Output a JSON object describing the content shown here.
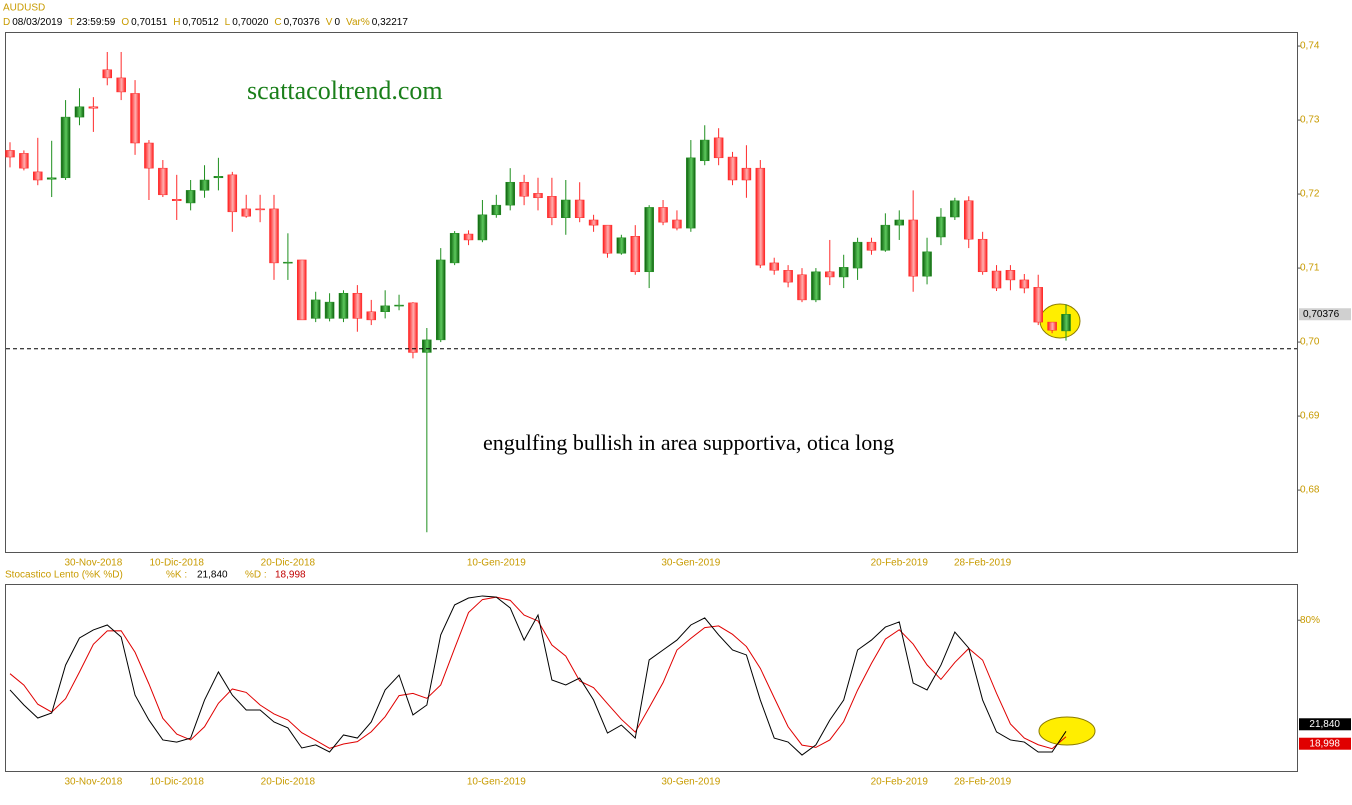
{
  "header": {
    "symbol": "AUDUSD",
    "fields": [
      {
        "key": "D",
        "value": "08/03/2019"
      },
      {
        "key": "T",
        "value": "23:59:59"
      },
      {
        "key": "O",
        "value": "0,70151"
      },
      {
        "key": "H",
        "value": "0,70512"
      },
      {
        "key": "L",
        "value": "0,70020"
      },
      {
        "key": "C",
        "value": "0,70376"
      },
      {
        "key": "V",
        "value": "0"
      },
      {
        "key": "Var%",
        "value": "0,32217"
      }
    ]
  },
  "chart_data": [
    {
      "type": "candlestick",
      "annotations": [
        "scattacoltrend.com",
        "engulfing bullish in area supportiva, otica long"
      ],
      "last_price_label": "0,70376",
      "support_level": 0.6991,
      "up_color": "#1f8f1f",
      "down_color": "#ff2a2a",
      "categories": [
        null,
        null,
        null,
        null,
        null,
        null,
        "30-Nov-2018",
        null,
        null,
        null,
        null,
        null,
        "10-Dic-2018",
        null,
        null,
        null,
        null,
        null,
        null,
        null,
        "20-Dic-2018",
        null,
        null,
        null,
        null,
        null,
        null,
        null,
        null,
        null,
        null,
        null,
        null,
        null,
        null,
        "10-Gen-2019",
        null,
        null,
        null,
        null,
        null,
        null,
        null,
        null,
        null,
        null,
        null,
        null,
        null,
        "30-Gen-2019",
        null,
        null,
        null,
        null,
        null,
        null,
        null,
        null,
        null,
        null,
        null,
        null,
        null,
        null,
        "20-Feb-2019",
        null,
        null,
        null,
        null,
        null,
        "28-Feb-2019",
        null,
        null,
        null,
        null,
        null,
        null
      ],
      "open": [
        0.7259,
        0.7255,
        0.723,
        0.722,
        0.7222,
        0.7304,
        0.7318,
        0.7368,
        0.7357,
        0.7336,
        0.7269,
        0.7235,
        0.7193,
        0.7188,
        0.7205,
        0.7222,
        0.7226,
        0.718,
        0.718,
        0.718,
        0.7107,
        0.7111,
        0.7032,
        0.7032,
        0.7032,
        0.7066,
        0.7041,
        0.7041,
        0.7049,
        0.7053,
        0.6986,
        0.7003,
        0.7107,
        0.7146,
        0.7138,
        0.7172,
        0.7185,
        0.7216,
        0.7201,
        0.7197,
        0.7168,
        0.7192,
        0.7165,
        0.7158,
        0.712,
        0.7143,
        0.7095,
        0.7182,
        0.7165,
        0.7154,
        0.7245,
        0.7276,
        0.725,
        0.7235,
        0.7235,
        0.7107,
        0.7097,
        0.7091,
        0.7057,
        0.7095,
        0.7088,
        0.71,
        0.7135,
        0.7124,
        0.7158,
        0.7165,
        0.7089,
        0.7142,
        0.7169,
        0.7191,
        0.7139,
        0.7096,
        0.7097,
        0.7084,
        0.7074,
        0.7027,
        0.70151
      ],
      "high": [
        0.727,
        0.7259,
        0.7276,
        0.7272,
        0.7327,
        0.7343,
        0.7331,
        0.7392,
        0.7392,
        0.7354,
        0.7273,
        0.7246,
        0.7226,
        0.7219,
        0.7239,
        0.7249,
        0.723,
        0.7199,
        0.7199,
        0.7199,
        0.7147,
        0.7111,
        0.7068,
        0.7066,
        0.707,
        0.7077,
        0.7057,
        0.707,
        0.7064,
        0.7054,
        0.7019,
        0.7127,
        0.715,
        0.7151,
        0.7192,
        0.7199,
        0.7235,
        0.7226,
        0.7222,
        0.7222,
        0.7219,
        0.7216,
        0.7172,
        0.7158,
        0.7145,
        0.7158,
        0.7185,
        0.7192,
        0.7178,
        0.7273,
        0.7293,
        0.7289,
        0.7257,
        0.7266,
        0.7246,
        0.7114,
        0.7104,
        0.71,
        0.71,
        0.7138,
        0.7118,
        0.7141,
        0.7141,
        0.7174,
        0.7178,
        0.7205,
        0.7141,
        0.7181,
        0.7195,
        0.7197,
        0.7149,
        0.7104,
        0.7104,
        0.7092,
        0.7091,
        0.7027,
        0.70512
      ],
      "low": [
        0.7236,
        0.7232,
        0.7212,
        0.7196,
        0.7219,
        0.7293,
        0.7284,
        0.7347,
        0.7327,
        0.7253,
        0.7192,
        0.7196,
        0.7165,
        0.7178,
        0.7195,
        0.7205,
        0.7149,
        0.7168,
        0.7162,
        0.7084,
        0.7084,
        0.703,
        0.7027,
        0.7028,
        0.7027,
        0.7014,
        0.7023,
        0.7032,
        0.7043,
        0.6978,
        0.6743,
        0.7,
        0.7104,
        0.7131,
        0.7135,
        0.7168,
        0.7178,
        0.7185,
        0.7178,
        0.7158,
        0.7145,
        0.7162,
        0.7149,
        0.7114,
        0.7118,
        0.7091,
        0.7073,
        0.7158,
        0.7151,
        0.7149,
        0.7239,
        0.7239,
        0.7212,
        0.7195,
        0.71,
        0.7091,
        0.7074,
        0.7054,
        0.7054,
        0.7077,
        0.7073,
        0.7084,
        0.7118,
        0.7122,
        0.7138,
        0.7068,
        0.7078,
        0.7131,
        0.7165,
        0.7127,
        0.7091,
        0.7069,
        0.707,
        0.7066,
        0.7023,
        0.7012,
        0.7002
      ],
      "close": [
        0.725,
        0.7235,
        0.7219,
        0.7222,
        0.7304,
        0.7318,
        0.7316,
        0.7357,
        0.7338,
        0.7269,
        0.7235,
        0.7199,
        0.7191,
        0.7205,
        0.7219,
        0.7224,
        0.7176,
        0.717,
        0.7179,
        0.7107,
        0.7108,
        0.703,
        0.7057,
        0.7054,
        0.7066,
        0.7032,
        0.703,
        0.7049,
        0.705,
        0.6986,
        0.7003,
        0.7111,
        0.7147,
        0.7138,
        0.7172,
        0.7185,
        0.7216,
        0.7197,
        0.7195,
        0.7168,
        0.7192,
        0.7168,
        0.7158,
        0.712,
        0.7141,
        0.7095,
        0.7182,
        0.7162,
        0.7154,
        0.7249,
        0.7273,
        0.7249,
        0.7219,
        0.7219,
        0.7104,
        0.7097,
        0.7081,
        0.7057,
        0.7095,
        0.7088,
        0.7101,
        0.7135,
        0.7124,
        0.7158,
        0.7165,
        0.7089,
        0.7122,
        0.7169,
        0.7191,
        0.7139,
        0.7095,
        0.7073,
        0.7084,
        0.7073,
        0.7027,
        0.7016,
        0.70376
      ],
      "ylim": [
        0.6715,
        0.7419
      ],
      "yticks": [
        {
          "value": 0.68,
          "label": "0,68"
        },
        {
          "value": 0.69,
          "label": "0,69"
        },
        {
          "value": 0.7,
          "label": "0,70"
        },
        {
          "value": 0.71,
          "label": "0,71"
        },
        {
          "value": 0.72,
          "label": "0,72"
        },
        {
          "value": 0.73,
          "label": "0,73"
        },
        {
          "value": 0.74,
          "label": "0,74"
        }
      ]
    },
    {
      "type": "line",
      "title": "Stocastico Lento (%K %D)",
      "series": [
        {
          "name": "%K :",
          "color": "#000000",
          "readout": "21,840",
          "values": [
            43.5,
            35.6,
            28.8,
            31.4,
            56.5,
            70.7,
            74.9,
            77.5,
            71.2,
            40.8,
            27.7,
            17.3,
            16.2,
            18.3,
            38.2,
            52.9,
            40.8,
            33.0,
            33.0,
            26.7,
            23.6,
            13.1,
            14.7,
            11.0,
            19.9,
            18.3,
            26.7,
            43.5,
            51.3,
            30.4,
            35.6,
            72.3,
            88.0,
            91.6,
            92.7,
            92.1,
            86.4,
            69.6,
            82.7,
            48.7,
            46.1,
            49.7,
            38.2,
            20.9,
            25.1,
            18.3,
            59.2,
            64.4,
            69.6,
            77.5,
            81.2,
            72.3,
            64.4,
            61.8,
            38.2,
            18.3,
            16.2,
            9.4,
            14.7,
            27.7,
            38.2,
            64.4,
            69.6,
            76.4,
            79.1,
            47.1,
            43.5,
            56.5,
            73.8,
            65.4,
            38.2,
            21.5,
            17.3,
            16.2,
            11.0,
            11.0,
            21.84
          ]
        },
        {
          "name": "%D :",
          "color": "#e00000",
          "readout": "18,998",
          "values": [
            52.0,
            46.0,
            36.0,
            31.9,
            38.9,
            52.9,
            67.4,
            74.4,
            74.5,
            63.2,
            46.6,
            28.6,
            20.4,
            17.3,
            24.2,
            36.5,
            44.0,
            42.2,
            35.6,
            30.9,
            27.8,
            21.1,
            17.1,
            12.9,
            15.2,
            16.4,
            21.6,
            29.5,
            40.5,
            41.7,
            39.1,
            46.1,
            65.3,
            84.0,
            90.8,
            92.1,
            90.4,
            82.7,
            79.6,
            67.0,
            61.2,
            48.2,
            44.7,
            36.3,
            28.1,
            21.4,
            34.2,
            47.3,
            64.4,
            70.5,
            76.1,
            77.0,
            72.6,
            66.2,
            54.8,
            39.4,
            24.2,
            14.6,
            13.4,
            17.3,
            26.9,
            43.4,
            57.4,
            70.1,
            75.0,
            67.5,
            56.6,
            49.0,
            57.9,
            65.2,
            59.1,
            41.7,
            25.7,
            18.3,
            14.8,
            12.7,
            18.998
          ]
        }
      ],
      "ylim": [
        0,
        100
      ],
      "yticks": [
        {
          "value": 80,
          "label": "80%"
        }
      ]
    }
  ]
}
